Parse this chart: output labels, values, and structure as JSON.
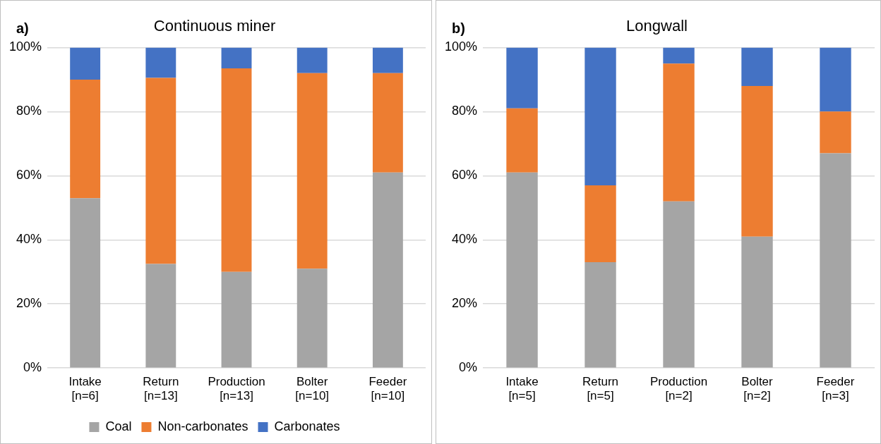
{
  "chart_data": [
    {
      "type": "bar",
      "title": "Continuous miner",
      "annotations": [
        "a)"
      ],
      "stacked": true,
      "categories": [
        "Intake\n[n=6]",
        "Return\n[n=13]",
        "Production\n[n=13]",
        "Bolter\n[n=10]",
        "Feeder\n[n=10]"
      ],
      "series": [
        {
          "name": "Coal",
          "color": "#a5a5a5",
          "values": [
            53,
            32.5,
            30,
            31,
            61
          ]
        },
        {
          "name": "Non-carbonates",
          "color": "#ed7d31",
          "values": [
            37,
            58,
            63.5,
            61,
            31
          ]
        },
        {
          "name": "Carbonates",
          "color": "#4472c4",
          "values": [
            10,
            9.5,
            6.5,
            8,
            8
          ]
        }
      ],
      "ylim": [
        0,
        100
      ],
      "yticks": [
        {
          "value": 0,
          "label": "0%"
        },
        {
          "value": 20,
          "label": "20%"
        },
        {
          "value": 40,
          "label": "40%"
        },
        {
          "value": 60,
          "label": "60%"
        },
        {
          "value": 80,
          "label": "80%"
        },
        {
          "value": 100,
          "label": "100%"
        }
      ],
      "grid": "y",
      "legend": "bottom"
    },
    {
      "type": "bar",
      "title": "Longwall",
      "annotations": [
        "b)"
      ],
      "stacked": true,
      "categories": [
        "Intake\n[n=5]",
        "Return\n[n=5]",
        "Production\n[n=2]",
        "Bolter\n[n=2]",
        "Feeder\n[n=3]"
      ],
      "series": [
        {
          "color": "#a5a5a5",
          "values": [
            61,
            33,
            52,
            41,
            67
          ]
        },
        {
          "color": "#ed7d31",
          "values": [
            20,
            24,
            43,
            47,
            13
          ]
        },
        {
          "color": "#4472c4",
          "values": [
            19,
            43,
            5,
            12,
            20
          ]
        }
      ],
      "ylim": [
        0,
        100
      ],
      "yticks": [
        {
          "value": 0,
          "label": "0%"
        },
        {
          "value": 20,
          "label": "20%"
        },
        {
          "value": 40,
          "label": "40%"
        },
        {
          "value": 60,
          "label": "60%"
        },
        {
          "value": 80,
          "label": "80%"
        },
        {
          "value": 100,
          "label": "100%"
        }
      ],
      "grid": "y",
      "legend": false
    }
  ]
}
